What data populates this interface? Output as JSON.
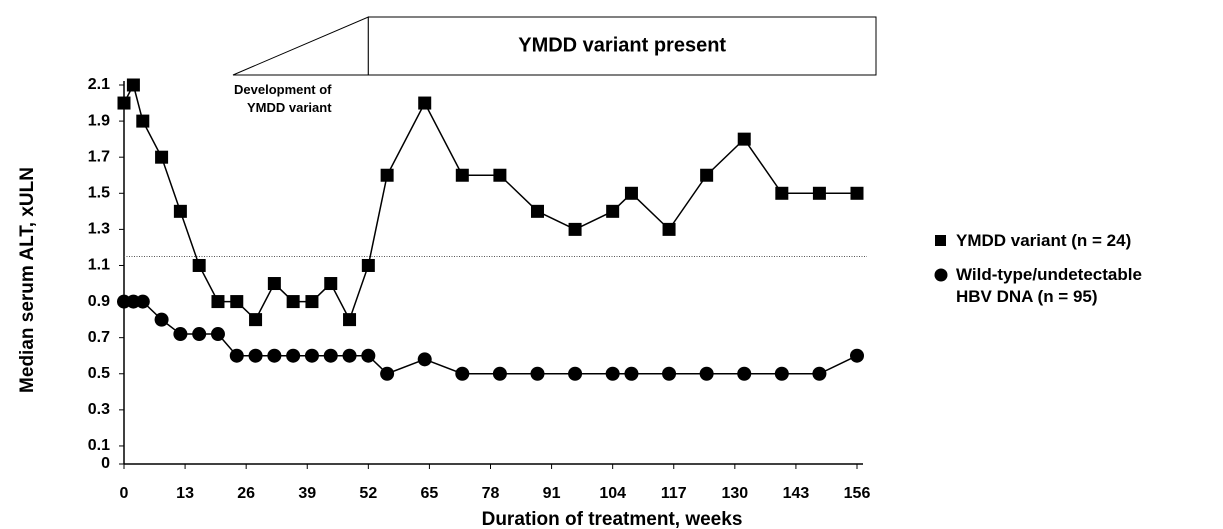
{
  "chart_data": {
    "type": "line",
    "y_axis_label": "Median serum ALT, xULN",
    "x_axis_label": "Duration of treatment, weeks",
    "xlim": [
      0,
      156
    ],
    "xticks": [
      0,
      13,
      26,
      39,
      52,
      65,
      78,
      91,
      104,
      117,
      130,
      143,
      156
    ],
    "ylim": [
      0,
      2.1
    ],
    "yticks": [
      0,
      0.1,
      0.3,
      0.5,
      0.7,
      0.9,
      1.1,
      1.3,
      1.5,
      1.7,
      1.9,
      2.1
    ],
    "reference_line": 1.15,
    "annotations": {
      "variant_present": "YMDD variant present",
      "development": "Development of YMDD variant"
    },
    "variant_start": 52,
    "series": [
      {
        "name": "YMDD variant (n = 24)",
        "color": "#000000",
        "marker": "square",
        "x": [
          0,
          2,
          4,
          8,
          12,
          16,
          20,
          24,
          28,
          32,
          36,
          40,
          44,
          48,
          52,
          56,
          64,
          72,
          80,
          88,
          96,
          104,
          108,
          116,
          124,
          132,
          140,
          148,
          156
        ],
        "values": [
          2.0,
          2.1,
          1.9,
          1.7,
          1.4,
          1.1,
          0.9,
          0.9,
          0.8,
          1.0,
          0.9,
          0.9,
          1.0,
          0.8,
          1.1,
          1.6,
          2.0,
          1.6,
          1.6,
          1.4,
          1.3,
          1.4,
          1.5,
          1.3,
          1.6,
          1.8,
          1.5,
          1.5,
          1.5
        ]
      },
      {
        "name": "Wild-type/undetectable HBV DNA (n = 95)",
        "color": "#000000",
        "marker": "circle",
        "x": [
          0,
          2,
          4,
          8,
          12,
          16,
          20,
          24,
          28,
          32,
          36,
          40,
          44,
          48,
          52,
          56,
          64,
          72,
          80,
          88,
          96,
          104,
          108,
          116,
          124,
          132,
          140,
          148,
          156
        ],
        "values": [
          0.9,
          0.9,
          0.9,
          0.8,
          0.72,
          0.72,
          0.72,
          0.6,
          0.6,
          0.6,
          0.6,
          0.6,
          0.6,
          0.6,
          0.6,
          0.5,
          0.58,
          0.5,
          0.5,
          0.5,
          0.5,
          0.5,
          0.5,
          0.5,
          0.5,
          0.5,
          0.5,
          0.5,
          0.6
        ]
      }
    ]
  }
}
